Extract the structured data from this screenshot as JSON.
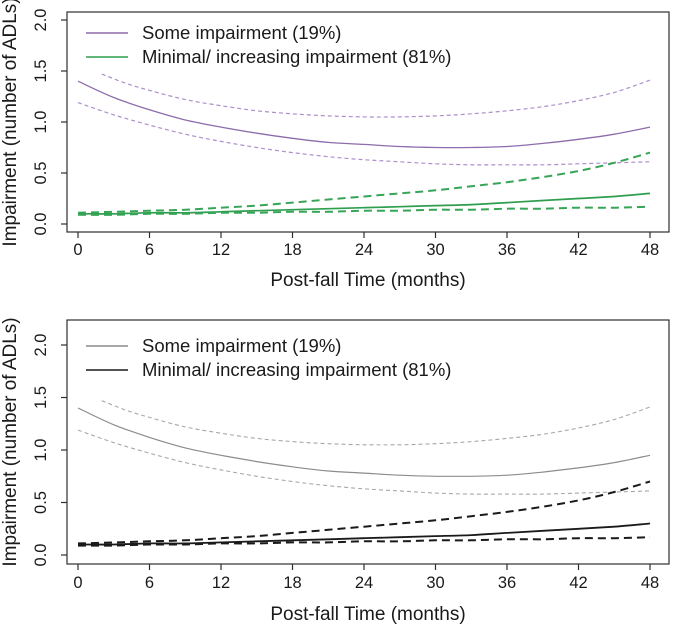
{
  "figure_title": "",
  "chart_data": [
    {
      "type": "line",
      "panel": "top-color-version",
      "title": "",
      "xlabel": "Post-fall Time (months)",
      "ylabel": "Impairment (number of ADLs)",
      "xlim": [
        0,
        48
      ],
      "ylim": [
        0.0,
        2.0
      ],
      "xticks": [
        0,
        6,
        12,
        18,
        24,
        30,
        36,
        42,
        48
      ],
      "yticks": [
        0.0,
        0.5,
        1.0,
        1.5,
        2.0
      ],
      "grid": false,
      "legend_position": "top-left",
      "legend": [
        {
          "label": "Some impairment (19%)",
          "color": "#8d6cab",
          "dash": "none"
        },
        {
          "label": "Minimal/ increasing impairment (81%)",
          "color": "#2f9e4f",
          "dash": "none"
        }
      ],
      "x": [
        0,
        3,
        6,
        9,
        12,
        15,
        18,
        21,
        24,
        27,
        30,
        33,
        36,
        39,
        42,
        45,
        48
      ],
      "series": [
        {
          "name": "Some impairment (19%) - mean",
          "color": "#8d6cab",
          "dash": "none",
          "width": 1.3,
          "values": [
            1.4,
            1.24,
            1.12,
            1.02,
            0.95,
            0.89,
            0.84,
            0.8,
            0.78,
            0.76,
            0.75,
            0.75,
            0.76,
            0.79,
            0.83,
            0.88,
            0.95
          ]
        },
        {
          "name": "Some impairment (19%) - upper 95% CI",
          "color": "#ac8fcc",
          "dash": "4 3",
          "width": 1.2,
          "x": [
            2,
            4,
            6,
            9,
            12,
            15,
            18,
            21,
            24,
            27,
            30,
            33,
            36,
            39,
            42,
            45,
            48
          ],
          "values": [
            1.47,
            1.38,
            1.31,
            1.22,
            1.16,
            1.11,
            1.08,
            1.06,
            1.05,
            1.05,
            1.06,
            1.08,
            1.11,
            1.15,
            1.21,
            1.29,
            1.41
          ]
        },
        {
          "name": "Some impairment (19%) - lower 95% CI",
          "color": "#ac8fcc",
          "dash": "4 3",
          "width": 1.2,
          "values": [
            1.19,
            1.07,
            0.97,
            0.88,
            0.81,
            0.75,
            0.7,
            0.66,
            0.63,
            0.61,
            0.59,
            0.58,
            0.58,
            0.58,
            0.59,
            0.6,
            0.61
          ]
        },
        {
          "name": "Minimal/ increasing impairment (81%) - mean",
          "color": "#2f9e4f",
          "dash": "none",
          "width": 1.7,
          "values": [
            0.1,
            0.1,
            0.11,
            0.11,
            0.12,
            0.13,
            0.14,
            0.15,
            0.16,
            0.17,
            0.18,
            0.19,
            0.21,
            0.23,
            0.25,
            0.27,
            0.3
          ]
        },
        {
          "name": "Minimal/ increasing impairment (81%) - upper 95% CI",
          "color": "#37a557",
          "dash": "8 5",
          "width": 2.0,
          "values": [
            0.11,
            0.12,
            0.13,
            0.14,
            0.16,
            0.18,
            0.21,
            0.24,
            0.27,
            0.3,
            0.33,
            0.37,
            0.41,
            0.46,
            0.52,
            0.6,
            0.7
          ]
        },
        {
          "name": "Minimal/ increasing impairment (81%) - lower 95% CI",
          "color": "#37a557",
          "dash": "8 5",
          "width": 2.0,
          "values": [
            0.09,
            0.09,
            0.1,
            0.1,
            0.11,
            0.11,
            0.12,
            0.12,
            0.13,
            0.13,
            0.14,
            0.14,
            0.15,
            0.15,
            0.16,
            0.16,
            0.17
          ]
        }
      ]
    },
    {
      "type": "line",
      "panel": "bottom-grayscale-version",
      "title": "",
      "xlabel": "Post-fall Time (months)",
      "ylabel": "Impairment (number of ADLs)",
      "xlim": [
        0,
        48
      ],
      "ylim": [
        0.0,
        2.0
      ],
      "xticks": [
        0,
        6,
        12,
        18,
        24,
        30,
        36,
        42,
        48
      ],
      "yticks": [
        0.0,
        0.5,
        1.0,
        1.5,
        2.0
      ],
      "grid": false,
      "legend_position": "top-left",
      "legend": [
        {
          "label": "Some impairment (19%)",
          "color": "#8c8c8c",
          "dash": "none"
        },
        {
          "label": "Minimal/ increasing impairment (81%)",
          "color": "#1a1a1a",
          "dash": "none"
        }
      ],
      "x": [
        0,
        3,
        6,
        9,
        12,
        15,
        18,
        21,
        24,
        27,
        30,
        33,
        36,
        39,
        42,
        45,
        48
      ],
      "series": [
        {
          "name": "Some impairment (19%) - mean",
          "color": "#8c8c8c",
          "dash": "none",
          "width": 1.2,
          "values": [
            1.4,
            1.24,
            1.12,
            1.02,
            0.95,
            0.89,
            0.84,
            0.8,
            0.78,
            0.76,
            0.75,
            0.75,
            0.76,
            0.79,
            0.83,
            0.88,
            0.95
          ]
        },
        {
          "name": "Some impairment (19%) - upper 95% CI",
          "color": "#a8a8a8",
          "dash": "4 3",
          "width": 1.1,
          "x": [
            2,
            4,
            6,
            9,
            12,
            15,
            18,
            21,
            24,
            27,
            30,
            33,
            36,
            39,
            42,
            45,
            48
          ],
          "values": [
            1.47,
            1.38,
            1.31,
            1.22,
            1.16,
            1.11,
            1.08,
            1.06,
            1.05,
            1.05,
            1.06,
            1.08,
            1.11,
            1.15,
            1.21,
            1.29,
            1.41
          ]
        },
        {
          "name": "Some impairment (19%) - lower 95% CI",
          "color": "#a8a8a8",
          "dash": "4 3",
          "width": 1.1,
          "values": [
            1.19,
            1.07,
            0.97,
            0.88,
            0.81,
            0.75,
            0.7,
            0.66,
            0.63,
            0.61,
            0.59,
            0.58,
            0.58,
            0.58,
            0.59,
            0.6,
            0.61
          ]
        },
        {
          "name": "Minimal/ increasing impairment (81%) - mean",
          "color": "#1a1a1a",
          "dash": "none",
          "width": 1.8,
          "values": [
            0.1,
            0.1,
            0.11,
            0.11,
            0.12,
            0.13,
            0.14,
            0.15,
            0.16,
            0.17,
            0.18,
            0.19,
            0.21,
            0.23,
            0.25,
            0.27,
            0.3
          ]
        },
        {
          "name": "Minimal/ increasing impairment (81%) - upper 95% CI",
          "color": "#1a1a1a",
          "dash": "8 5",
          "width": 2.0,
          "values": [
            0.11,
            0.12,
            0.13,
            0.14,
            0.16,
            0.18,
            0.21,
            0.24,
            0.27,
            0.3,
            0.33,
            0.37,
            0.41,
            0.46,
            0.52,
            0.6,
            0.7
          ]
        },
        {
          "name": "Minimal/ increasing impairment (81%) - lower 95% CI",
          "color": "#1a1a1a",
          "dash": "8 5",
          "width": 2.0,
          "values": [
            0.09,
            0.09,
            0.1,
            0.1,
            0.11,
            0.11,
            0.12,
            0.12,
            0.13,
            0.13,
            0.14,
            0.14,
            0.15,
            0.15,
            0.16,
            0.16,
            0.17
          ]
        }
      ]
    }
  ]
}
